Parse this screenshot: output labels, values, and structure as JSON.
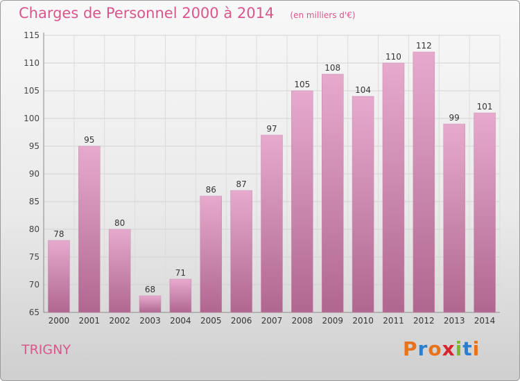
{
  "header": {
    "title": "Charges de Personnel 2000 à 2014",
    "subtitle": "(en milliers d'€)"
  },
  "footer": {
    "commune": "TRIGNY",
    "brand": "Proxiti"
  },
  "colors": {
    "title": "#d9568c",
    "bar_top": "#e6aacd",
    "bar_bottom": "#b0678f",
    "brand_letters": [
      "#e8731a",
      "#2a7fd0",
      "#e8731a",
      "#d6262d",
      "#7bb82a",
      "#2a7fd0",
      "#e8731a"
    ]
  },
  "chart_data": {
    "type": "bar",
    "categories": [
      "2000",
      "2001",
      "2002",
      "2003",
      "2004",
      "2005",
      "2006",
      "2007",
      "2008",
      "2009",
      "2010",
      "2011",
      "2012",
      "2013",
      "2014"
    ],
    "values": [
      78,
      95,
      80,
      68,
      71,
      86,
      87,
      97,
      105,
      108,
      104,
      110,
      112,
      99,
      101
    ],
    "ylim": [
      65,
      115
    ],
    "yticks": [
      65,
      70,
      75,
      80,
      85,
      90,
      95,
      100,
      105,
      110,
      115
    ],
    "grid": true,
    "data_labels": true
  }
}
